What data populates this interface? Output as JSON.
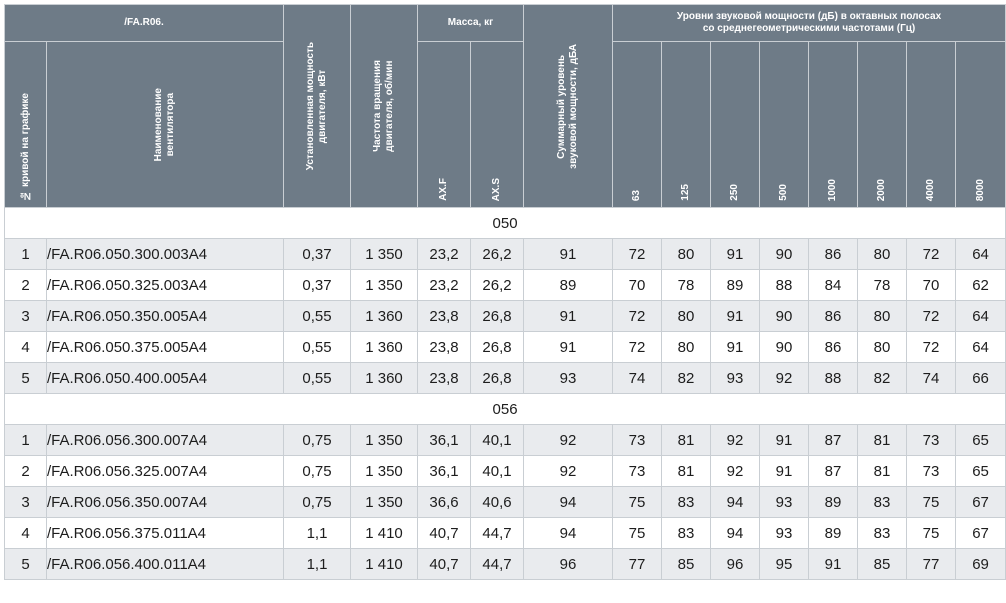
{
  "header": {
    "model_group": "/FA.R06.",
    "mass_group": "Масса, кг",
    "sound_group": "Уровни звуковой мощности (дБ) в октавных полосах\nсо среднегеометрическими частотами (Гц)",
    "curve_no": "№ кривой на графике",
    "fan_name": "Наименование\nвентилятора",
    "motor_power": "Установленная мощность\nдвигателя, кВт",
    "motor_speed": "Частота вращения\nдвигателя, об/мин",
    "mass_axf": "AX.F",
    "mass_axs": "AX.S",
    "total_sound": "Суммарный уровень\nзвуковой мощности, дБА",
    "freqs": [
      "63",
      "125",
      "250",
      "500",
      "1000",
      "2000",
      "4000",
      "8000"
    ]
  },
  "groups": [
    {
      "label": "050",
      "rows": [
        {
          "no": "1",
          "name": "/FA.R06.050.300.003A4",
          "power": "0,37",
          "speed": "1 350",
          "axf": "23,2",
          "axs": "26,2",
          "total": "91",
          "bands": [
            "72",
            "80",
            "91",
            "90",
            "86",
            "80",
            "72",
            "64"
          ]
        },
        {
          "no": "2",
          "name": "/FA.R06.050.325.003A4",
          "power": "0,37",
          "speed": "1 350",
          "axf": "23,2",
          "axs": "26,2",
          "total": "89",
          "bands": [
            "70",
            "78",
            "89",
            "88",
            "84",
            "78",
            "70",
            "62"
          ]
        },
        {
          "no": "3",
          "name": "/FA.R06.050.350.005A4",
          "power": "0,55",
          "speed": "1 360",
          "axf": "23,8",
          "axs": "26,8",
          "total": "91",
          "bands": [
            "72",
            "80",
            "91",
            "90",
            "86",
            "80",
            "72",
            "64"
          ]
        },
        {
          "no": "4",
          "name": "/FA.R06.050.375.005A4",
          "power": "0,55",
          "speed": "1 360",
          "axf": "23,8",
          "axs": "26,8",
          "total": "91",
          "bands": [
            "72",
            "80",
            "91",
            "90",
            "86",
            "80",
            "72",
            "64"
          ]
        },
        {
          "no": "5",
          "name": "/FA.R06.050.400.005A4",
          "power": "0,55",
          "speed": "1 360",
          "axf": "23,8",
          "axs": "26,8",
          "total": "93",
          "bands": [
            "74",
            "82",
            "93",
            "92",
            "88",
            "82",
            "74",
            "66"
          ]
        }
      ]
    },
    {
      "label": "056",
      "rows": [
        {
          "no": "1",
          "name": "/FA.R06.056.300.007A4",
          "power": "0,75",
          "speed": "1 350",
          "axf": "36,1",
          "axs": "40,1",
          "total": "92",
          "bands": [
            "73",
            "81",
            "92",
            "91",
            "87",
            "81",
            "73",
            "65"
          ]
        },
        {
          "no": "2",
          "name": "/FA.R06.056.325.007A4",
          "power": "0,75",
          "speed": "1 350",
          "axf": "36,1",
          "axs": "40,1",
          "total": "92",
          "bands": [
            "73",
            "81",
            "92",
            "91",
            "87",
            "81",
            "73",
            "65"
          ]
        },
        {
          "no": "3",
          "name": "/FA.R06.056.350.007A4",
          "power": "0,75",
          "speed": "1 350",
          "axf": "36,6",
          "axs": "40,6",
          "total": "94",
          "bands": [
            "75",
            "83",
            "94",
            "93",
            "89",
            "83",
            "75",
            "67"
          ]
        },
        {
          "no": "4",
          "name": "/FA.R06.056.375.011A4",
          "power": "1,1",
          "speed": "1 410",
          "axf": "40,7",
          "axs": "44,7",
          "total": "94",
          "bands": [
            "75",
            "83",
            "94",
            "93",
            "89",
            "83",
            "75",
            "67"
          ]
        },
        {
          "no": "5",
          "name": "/FA.R06.056.400.011A4",
          "power": "1,1",
          "speed": "1 410",
          "axf": "40,7",
          "axs": "44,7",
          "total": "96",
          "bands": [
            "77",
            "85",
            "96",
            "95",
            "91",
            "85",
            "77",
            "69"
          ]
        }
      ]
    }
  ]
}
